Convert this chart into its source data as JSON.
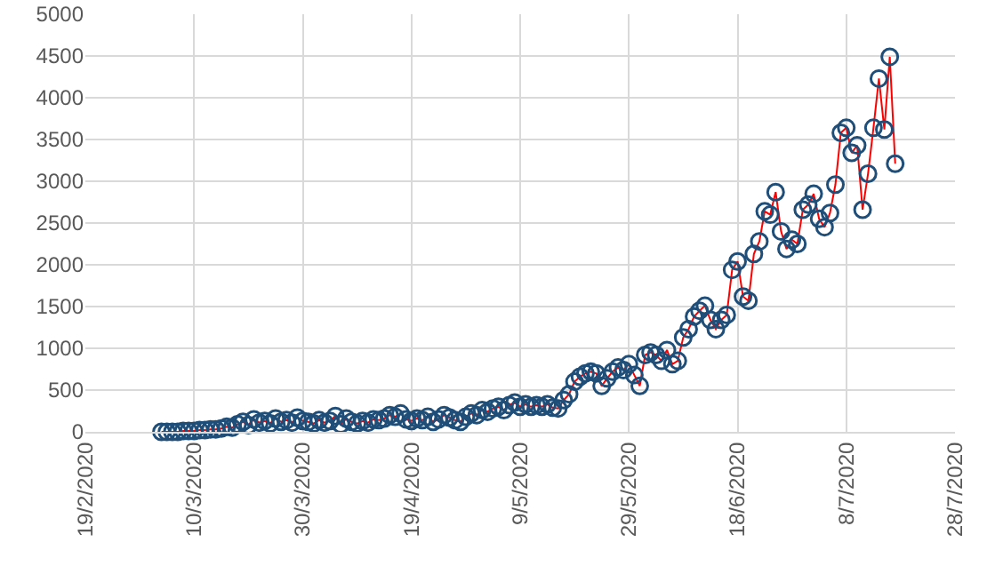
{
  "chart_data": {
    "type": "line",
    "marker": "circle",
    "line_style": "solid",
    "grid": true,
    "xlim": [
      "2020-02-19",
      "2020-07-28"
    ],
    "xticks": [
      {
        "value": "2020-02-19",
        "label": "19/2/2020"
      },
      {
        "value": "2020-03-10",
        "label": "10/3/2020"
      },
      {
        "value": "2020-03-30",
        "label": "30/3/2020"
      },
      {
        "value": "2020-04-19",
        "label": "19/4/2020"
      },
      {
        "value": "2020-05-09",
        "label": "9/5/2020"
      },
      {
        "value": "2020-05-29",
        "label": "29/5/2020"
      },
      {
        "value": "2020-06-18",
        "label": "18/6/2020"
      },
      {
        "value": "2020-07-08",
        "label": "8/7/2020"
      },
      {
        "value": "2020-07-28",
        "label": "28/7/2020"
      }
    ],
    "ylim": [
      0,
      5000
    ],
    "yticks": [
      0,
      500,
      1000,
      1500,
      2000,
      2500,
      3000,
      3500,
      4000,
      4500,
      5000
    ],
    "x": [
      "2020-03-04",
      "2020-03-05",
      "2020-03-06",
      "2020-03-07",
      "2020-03-08",
      "2020-03-09",
      "2020-03-10",
      "2020-03-11",
      "2020-03-12",
      "2020-03-13",
      "2020-03-14",
      "2020-03-15",
      "2020-03-16",
      "2020-03-17",
      "2020-03-18",
      "2020-03-19",
      "2020-03-20",
      "2020-03-21",
      "2020-03-22",
      "2020-03-23",
      "2020-03-24",
      "2020-03-25",
      "2020-03-26",
      "2020-03-27",
      "2020-03-28",
      "2020-03-29",
      "2020-03-30",
      "2020-03-31",
      "2020-04-01",
      "2020-04-02",
      "2020-04-03",
      "2020-04-04",
      "2020-04-05",
      "2020-04-06",
      "2020-04-07",
      "2020-04-08",
      "2020-04-09",
      "2020-04-10",
      "2020-04-11",
      "2020-04-12",
      "2020-04-13",
      "2020-04-14",
      "2020-04-15",
      "2020-04-16",
      "2020-04-17",
      "2020-04-18",
      "2020-04-19",
      "2020-04-20",
      "2020-04-21",
      "2020-04-22",
      "2020-04-23",
      "2020-04-24",
      "2020-04-25",
      "2020-04-26",
      "2020-04-27",
      "2020-04-28",
      "2020-04-29",
      "2020-04-30",
      "2020-05-01",
      "2020-05-02",
      "2020-05-03",
      "2020-05-04",
      "2020-05-05",
      "2020-05-06",
      "2020-05-07",
      "2020-05-08",
      "2020-05-09",
      "2020-05-10",
      "2020-05-11",
      "2020-05-12",
      "2020-05-13",
      "2020-05-14",
      "2020-05-15",
      "2020-05-16",
      "2020-05-17",
      "2020-05-18",
      "2020-05-19",
      "2020-05-20",
      "2020-05-21",
      "2020-05-22",
      "2020-05-23",
      "2020-05-24",
      "2020-05-25",
      "2020-05-26",
      "2020-05-27",
      "2020-05-28",
      "2020-05-29",
      "2020-05-30",
      "2020-05-31",
      "2020-06-01",
      "2020-06-02",
      "2020-06-03",
      "2020-06-04",
      "2020-06-05",
      "2020-06-06",
      "2020-06-07",
      "2020-06-08",
      "2020-06-09",
      "2020-06-10",
      "2020-06-11",
      "2020-06-12",
      "2020-06-13",
      "2020-06-14",
      "2020-06-15",
      "2020-06-16",
      "2020-06-17",
      "2020-06-18",
      "2020-06-19",
      "2020-06-20",
      "2020-06-21",
      "2020-06-22",
      "2020-06-23",
      "2020-06-24",
      "2020-06-25",
      "2020-06-26",
      "2020-06-27",
      "2020-06-28",
      "2020-06-29",
      "2020-06-30",
      "2020-07-01",
      "2020-07-02",
      "2020-07-03",
      "2020-07-04",
      "2020-07-05",
      "2020-07-06",
      "2020-07-07",
      "2020-07-08",
      "2020-07-09",
      "2020-07-10",
      "2020-07-11",
      "2020-07-12",
      "2020-07-13",
      "2020-07-14",
      "2020-07-15",
      "2020-07-16",
      "2020-07-17"
    ],
    "series": [
      {
        "color": "#ff0000",
        "values": [
          0,
          0,
          0,
          0,
          10,
          10,
          10,
          20,
          20,
          30,
          30,
          40,
          60,
          50,
          90,
          120,
          80,
          150,
          110,
          130,
          100,
          160,
          120,
          140,
          110,
          170,
          130,
          120,
          100,
          140,
          110,
          130,
          190,
          90,
          160,
          120,
          100,
          130,
          110,
          150,
          140,
          160,
          200,
          180,
          220,
          150,
          130,
          160,
          140,
          180,
          120,
          150,
          200,
          170,
          140,
          120,
          180,
          220,
          200,
          260,
          240,
          280,
          300,
          260,
          320,
          350,
          300,
          330,
          300,
          320,
          300,
          330,
          290,
          280,
          380,
          450,
          600,
          660,
          700,
          720,
          700,
          550,
          640,
          720,
          770,
          740,
          810,
          680,
          550,
          920,
          950,
          920,
          850,
          980,
          810,
          850,
          1130,
          1230,
          1380,
          1450,
          1510,
          1340,
          1230,
          1340,
          1400,
          1940,
          2040,
          1620,
          1570,
          2130,
          2280,
          2640,
          2600,
          2870,
          2400,
          2190,
          2300,
          2250,
          2660,
          2720,
          2850,
          2550,
          2450,
          2620,
          2960,
          3580,
          3640,
          3340,
          3430,
          2660,
          3090,
          3640,
          4230,
          3620,
          4490,
          3210
        ]
      }
    ]
  }
}
